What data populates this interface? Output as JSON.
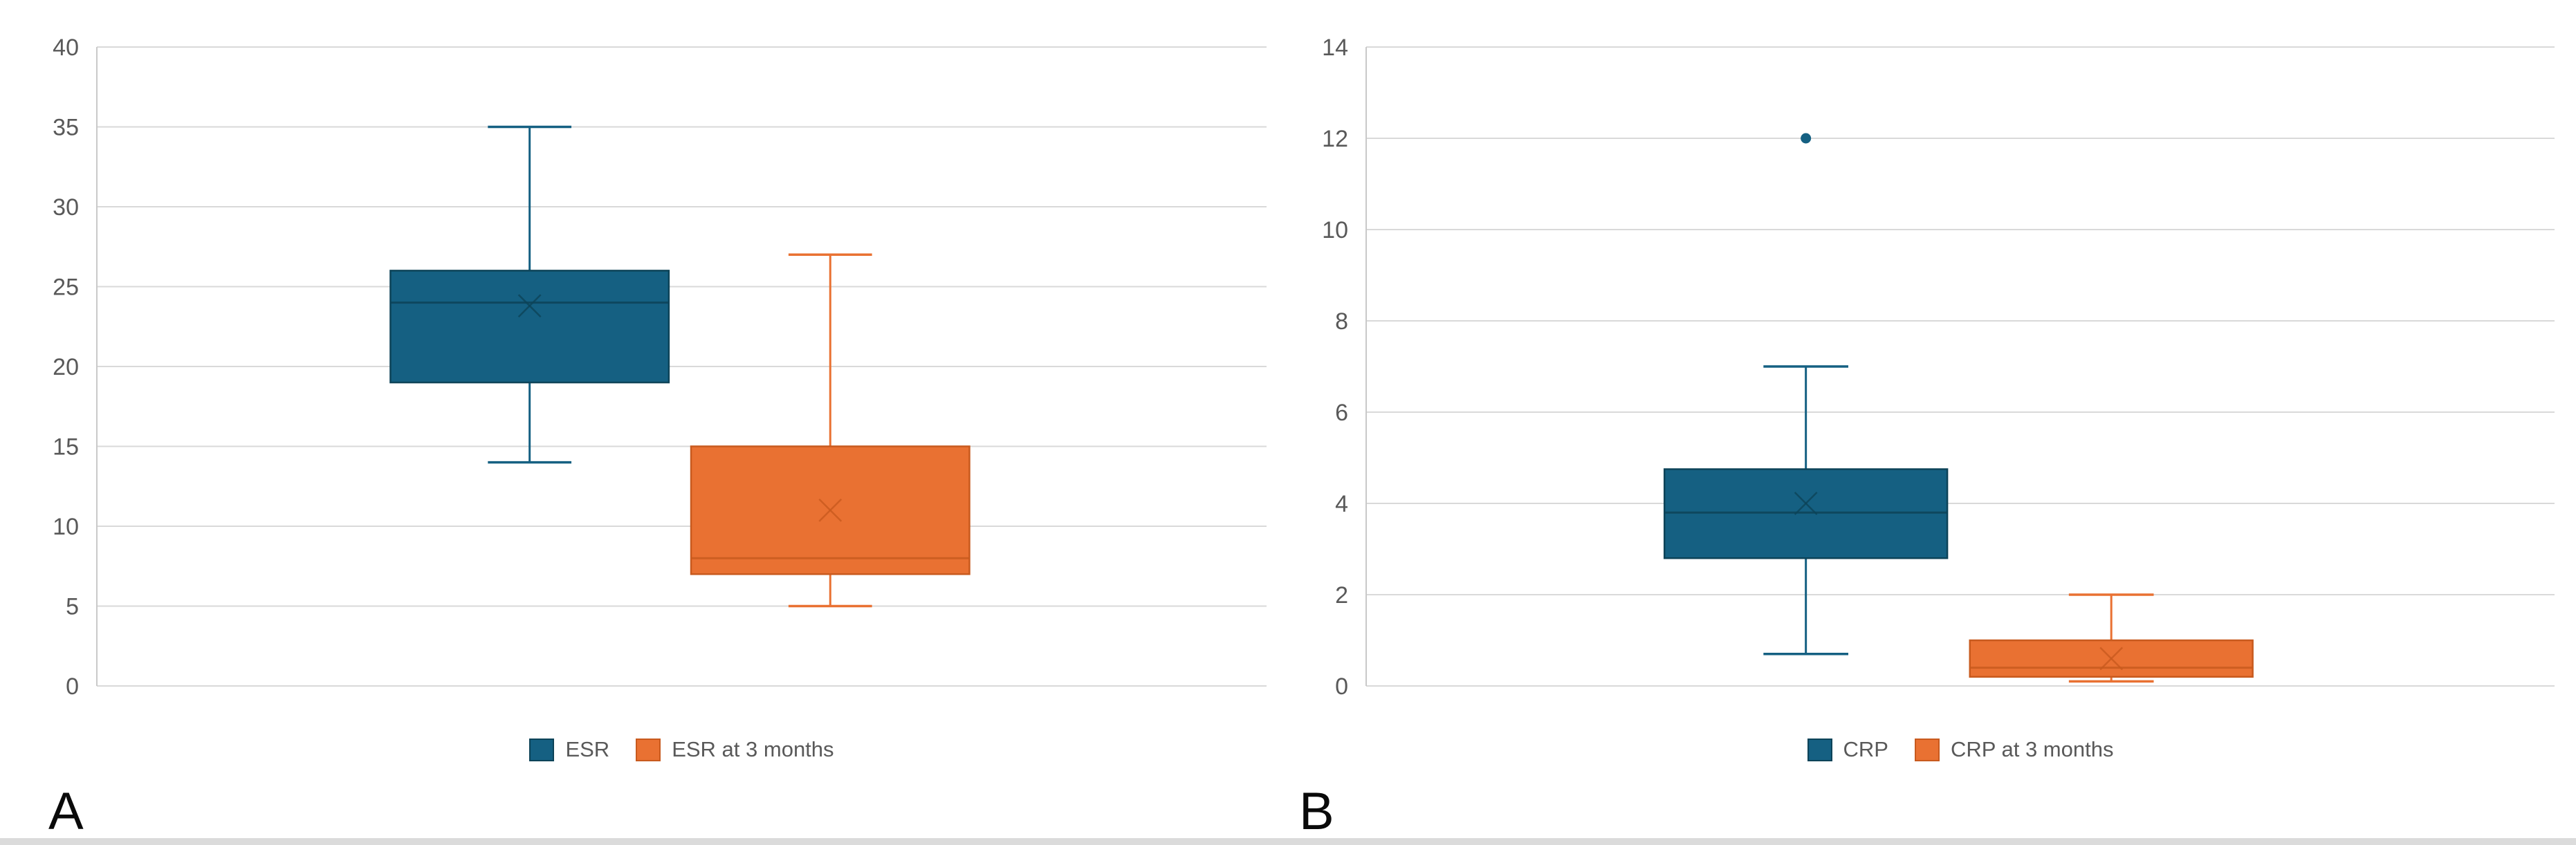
{
  "style": {
    "background": "#ffffff",
    "gridline_color": "#d9d9d9",
    "axis_line_color": "#c9c9c9",
    "tick_label_color": "#595959",
    "legend_text_color": "#595959",
    "panel_label_color": "#0a0a0a",
    "bottom_strip_color": "#dbdbdb",
    "blue_accent": "#156082",
    "orange_accent": "#e97132"
  },
  "chart_data": [
    {
      "type": "boxplot",
      "panel_label": "A",
      "title": "",
      "xlabel": "",
      "ylabel": "",
      "ylim": [
        0,
        40
      ],
      "ytick_step": 5,
      "ytick_labels": [
        "0",
        "5",
        "10",
        "15",
        "20",
        "25",
        "30",
        "35",
        "40"
      ],
      "grid": true,
      "legend_position": "bottom-center",
      "series": [
        {
          "name": "ESR",
          "color": "#156082",
          "border_color": "#0d4358",
          "min": 14,
          "q1": 19,
          "median": 24,
          "q3": 26,
          "max": 35,
          "mean": 23.8,
          "outliers": []
        },
        {
          "name": "ESR at 3 months",
          "color": "#e97132",
          "border_color": "#c85a1e",
          "min": 5,
          "q1": 7,
          "median": 8,
          "q3": 15,
          "max": 27,
          "mean": 11,
          "outliers": []
        }
      ]
    },
    {
      "type": "boxplot",
      "panel_label": "B",
      "title": "",
      "xlabel": "",
      "ylabel": "",
      "ylim": [
        0,
        14
      ],
      "ytick_step": 2,
      "ytick_labels": [
        "0",
        "2",
        "4",
        "6",
        "8",
        "10",
        "12",
        "14"
      ],
      "grid": true,
      "legend_position": "bottom-center",
      "series": [
        {
          "name": "CRP",
          "color": "#156082",
          "border_color": "#0d4358",
          "min": 0.7,
          "q1": 2.8,
          "median": 3.8,
          "q3": 4.75,
          "max": 7,
          "mean": 4,
          "outliers": [
            12
          ]
        },
        {
          "name": "CRP at 3 months",
          "color": "#e97132",
          "border_color": "#c85a1e",
          "min": 0.1,
          "q1": 0.2,
          "median": 0.4,
          "q3": 1,
          "max": 2,
          "mean": 0.6,
          "outliers": []
        }
      ]
    }
  ]
}
